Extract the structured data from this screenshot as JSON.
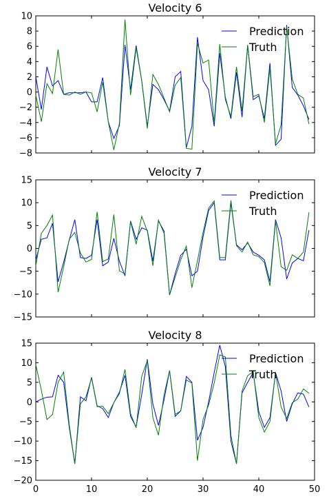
{
  "chart_data": [
    {
      "type": "line",
      "title": "Velocity 6",
      "xlabel": "",
      "ylabel": "",
      "xlim": [
        0,
        50
      ],
      "ylim": [
        -8,
        10
      ],
      "yticks": [
        -8,
        -6,
        -4,
        -2,
        0,
        2,
        4,
        6,
        8,
        10
      ],
      "xticks": [],
      "legend_position": "top-right",
      "series": [
        {
          "name": "Prediction",
          "color": "#0000ff",
          "values": [
            2.0,
            -2.3,
            3.3,
            0.8,
            1.5,
            -0.3,
            -0.1,
            -0.1,
            -0.1,
            0.0,
            -1.3,
            -1.3,
            1.9,
            -3.9,
            -6.1,
            -4.4,
            6.2,
            0.3,
            6.1,
            1.5,
            -4.5,
            1.0,
            0.3,
            -1.0,
            -2.5,
            2.0,
            2.7,
            -7.3,
            -4.5,
            7.2,
            1.5,
            0.3,
            -4.5,
            5.1,
            -0.7,
            -3.5,
            2.6,
            -3.3,
            6.1,
            -1.0,
            -0.5,
            -3.5,
            3.8,
            -7.0,
            -6.2,
            8.8,
            0.6,
            -0.4,
            -1.8,
            -3.6
          ]
        },
        {
          "name": "Truth",
          "color": "#008000",
          "values": [
            -0.4,
            -3.9,
            1.1,
            -0.2,
            5.6,
            -0.3,
            -0.4,
            0.0,
            -0.3,
            0.0,
            -0.1,
            -2.6,
            1.3,
            -3.9,
            -7.6,
            -4.1,
            9.5,
            -0.4,
            5.8,
            1.5,
            -4.8,
            2.3,
            1.0,
            -0.8,
            -2.6,
            0.9,
            1.9,
            -7.4,
            -7.5,
            6.4,
            3.8,
            4.2,
            -4.1,
            6.3,
            -1.0,
            -3.2,
            3.3,
            -2.5,
            6.2,
            -0.6,
            -0.3,
            -4.0,
            3.2,
            -6.8,
            -4.3,
            8.6,
            1.7,
            -0.3,
            -0.8,
            -4.2
          ]
        }
      ]
    },
    {
      "type": "line",
      "title": "Velocity 7",
      "xlabel": "",
      "ylabel": "",
      "xlim": [
        0,
        50
      ],
      "ylim": [
        -15,
        15
      ],
      "yticks": [
        -15,
        -10,
        -5,
        0,
        5,
        10,
        15
      ],
      "xticks": [],
      "legend_position": "top-right",
      "series": [
        {
          "name": "Prediction",
          "color": "#0000ff",
          "values": [
            -2.5,
            2.0,
            2.3,
            5.5,
            -7.3,
            -3.0,
            1.8,
            6.3,
            -2.0,
            -2.2,
            -1.5,
            6.3,
            -3.8,
            -3.0,
            2.2,
            -2.8,
            -6.0,
            6.0,
            2.0,
            4.5,
            4.0,
            -2.8,
            6.0,
            3.8,
            -10.2,
            -5.5,
            -1.5,
            -0.2,
            -6.0,
            -5.0,
            2.5,
            8.3,
            10.0,
            -2.5,
            -2.5,
            10.0,
            0.8,
            -0.3,
            1.2,
            -0.8,
            -1.5,
            -2.5,
            -7.3,
            6.3,
            2.3,
            -6.7,
            -3.2,
            -2.2,
            -2.7,
            4.0
          ]
        },
        {
          "name": "Truth",
          "color": "#008000",
          "values": [
            -3.8,
            3.3,
            5.0,
            7.3,
            -9.6,
            -4.0,
            2.0,
            3.5,
            -1.0,
            -3.0,
            -2.4,
            8.0,
            -2.9,
            -2.3,
            7.4,
            -4.9,
            -5.6,
            5.9,
            0.9,
            7.0,
            3.8,
            -3.8,
            6.2,
            3.3,
            -10.2,
            -6.3,
            -2.5,
            0.5,
            -8.6,
            -2.7,
            3.5,
            8.8,
            10.4,
            -2.0,
            -2.0,
            10.5,
            0.6,
            -0.8,
            1.4,
            -1.4,
            -1.8,
            -3.1,
            -8.2,
            6.0,
            -4.0,
            -4.8,
            -1.4,
            -2.2,
            -0.8,
            7.9
          ]
        }
      ]
    },
    {
      "type": "line",
      "title": "Velocity 8",
      "xlabel": "",
      "ylabel": "",
      "xlim": [
        0,
        50
      ],
      "ylim": [
        -20,
        15
      ],
      "yticks": [
        -20,
        -15,
        -10,
        -5,
        0,
        5,
        10,
        15
      ],
      "xticks": [
        0,
        10,
        20,
        30,
        40,
        50
      ],
      "legend_position": "top-right",
      "series": [
        {
          "name": "Prediction",
          "color": "#0000ff",
          "values": [
            0.0,
            0.7,
            1.2,
            1.3,
            6.8,
            5.0,
            -6.5,
            -15.8,
            1.3,
            0.3,
            6.3,
            -1.0,
            -1.7,
            -4.0,
            -0.2,
            2.5,
            6.8,
            -3.7,
            -6.4,
            1.9,
            10.9,
            -0.5,
            -6.0,
            0.5,
            8.0,
            -3.7,
            -2.3,
            6.5,
            5.0,
            -9.8,
            -6.5,
            0.0,
            7.5,
            14.5,
            9.0,
            -10.0,
            -15.8,
            2.3,
            5.0,
            7.5,
            -2.5,
            -6.5,
            -4.0,
            7.5,
            2.8,
            -5.0,
            -0.5,
            2.3,
            2.0,
            -1.3
          ]
        },
        {
          "name": "Truth",
          "color": "#008000",
          "values": [
            9.5,
            3.0,
            -4.5,
            -3.2,
            5.0,
            7.6,
            -5.8,
            -15.8,
            -0.5,
            1.3,
            6.1,
            -1.2,
            -1.1,
            -3.0,
            -0.2,
            2.1,
            8.3,
            -3.0,
            -6.6,
            6.5,
            10.5,
            -4.0,
            -8.5,
            1.8,
            8.0,
            -3.2,
            -2.3,
            5.6,
            4.8,
            -15.0,
            -4.5,
            -0.8,
            4.8,
            12.0,
            11.5,
            -8.5,
            -15.8,
            2.8,
            6.7,
            7.7,
            -4.0,
            -7.7,
            -5.0,
            7.6,
            -1.3,
            -4.2,
            -0.2,
            0.7,
            3.3,
            2.2
          ]
        }
      ]
    }
  ]
}
